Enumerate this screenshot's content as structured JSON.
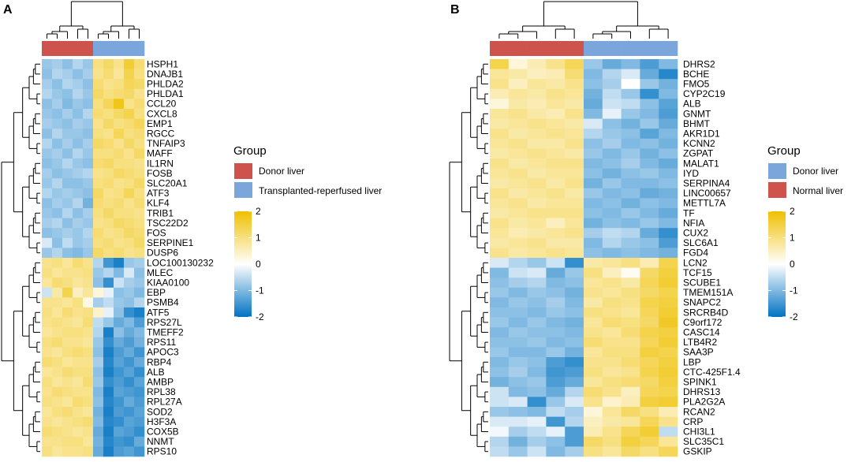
{
  "colors": {
    "donor": "#cd534c",
    "transplanted": "#7aa6dc",
    "normal": "#cd534c",
    "scale_low": "#0073c2",
    "scale_mid": "#ffffff",
    "scale_high": "#efc000"
  },
  "scale": {
    "min": -2,
    "max": 2,
    "ticks": [
      "2",
      "1",
      "0",
      "-1",
      "-2"
    ]
  },
  "chart_data": [
    {
      "type": "heatmap",
      "panel": "A",
      "legend": {
        "title": "Group",
        "entries": [
          "Donor liver",
          "Transplanted-reperfused liver"
        ]
      },
      "columns": [
        "Donor liver",
        "Donor liver",
        "Donor liver",
        "Donor liver",
        "Donor liver",
        "Transplanted-reperfused liver",
        "Transplanted-reperfused liver",
        "Transplanted-reperfused liver",
        "Transplanted-reperfused liver",
        "Transplanted-reperfused liver"
      ],
      "color_range": [
        -2,
        2
      ],
      "genes": [
        "HSPH1",
        "DNAJB1",
        "PHLDA2",
        "PHLDA1",
        "CCL20",
        "CXCL8",
        "EMP1",
        "RGCC",
        "TNFAIP3",
        "MAFF",
        "IL1RN",
        "FOSB",
        "SLC20A1",
        "ATF3",
        "KLF4",
        "TRIB1",
        "TSC22D2",
        "FOS",
        "SERPINE1",
        "DUSP6",
        "LOC100130232",
        "MLEC",
        "KIAA0100",
        "EBP",
        "PSMB4",
        "ATF5",
        "RPS27L",
        "TMEFF2",
        "RPS11",
        "APOC3",
        "RBP4",
        "ALB",
        "AMBP",
        "RPL38",
        "RPL27A",
        "SOD2",
        "H3F3A",
        "COX5B",
        "NNMT",
        "RPS10"
      ],
      "values": [
        [
          -0.8,
          -0.7,
          -0.9,
          -0.6,
          -0.8,
          1.0,
          1.2,
          0.9,
          1.6,
          1.1
        ],
        [
          -0.9,
          -0.6,
          -0.7,
          -0.9,
          -0.7,
          0.9,
          1.1,
          0.8,
          1.4,
          1.0
        ],
        [
          -0.7,
          -0.9,
          -0.6,
          -0.7,
          -0.9,
          1.1,
          0.9,
          1.0,
          1.3,
          1.2
        ],
        [
          -0.6,
          -0.8,
          -0.9,
          -0.6,
          -0.8,
          1.2,
          1.0,
          1.1,
          1.2,
          0.9
        ],
        [
          -0.9,
          -0.7,
          -1.0,
          -0.8,
          -0.9,
          1.0,
          1.3,
          1.8,
          0.9,
          1.1
        ],
        [
          -0.8,
          -0.9,
          -0.7,
          -0.9,
          -0.6,
          1.1,
          1.0,
          1.2,
          1.4,
          1.0
        ],
        [
          -0.7,
          -0.8,
          -0.9,
          -0.7,
          -0.8,
          0.9,
          1.2,
          1.0,
          1.1,
          1.3
        ],
        [
          -0.9,
          -0.6,
          -0.8,
          -0.8,
          -0.9,
          1.0,
          0.9,
          1.3,
          1.0,
          1.1
        ],
        [
          -0.6,
          -0.9,
          -0.7,
          -0.9,
          -0.7,
          1.2,
          1.1,
          0.9,
          1.2,
          1.0
        ],
        [
          -0.8,
          -0.7,
          -0.9,
          -0.6,
          -0.8,
          1.0,
          1.0,
          1.1,
          0.9,
          1.2
        ],
        [
          -0.9,
          -0.8,
          -0.6,
          -0.8,
          -0.9,
          1.1,
          1.2,
          1.0,
          1.0,
          0.9
        ],
        [
          -0.7,
          -0.9,
          -0.8,
          -0.7,
          -0.6,
          0.9,
          1.0,
          1.2,
          1.1,
          1.0
        ],
        [
          -0.8,
          -0.6,
          -0.9,
          -0.9,
          -0.8,
          1.0,
          1.1,
          0.9,
          1.0,
          1.2
        ],
        [
          -0.6,
          -0.8,
          -0.7,
          -0.8,
          -0.9,
          1.2,
          0.9,
          1.0,
          1.3,
          1.0
        ],
        [
          -0.9,
          -0.7,
          -0.8,
          -0.6,
          -1.1,
          1.1,
          1.0,
          1.1,
          0.9,
          1.1
        ],
        [
          -0.8,
          -0.9,
          -0.6,
          -0.9,
          -0.7,
          1.0,
          1.2,
          1.0,
          1.0,
          0.9
        ],
        [
          -0.7,
          -0.6,
          -0.9,
          -0.7,
          -0.8,
          0.9,
          1.0,
          1.2,
          1.1,
          1.0
        ],
        [
          -0.9,
          -0.8,
          -0.7,
          -0.8,
          -0.6,
          1.1,
          0.9,
          1.0,
          1.2,
          1.1
        ],
        [
          -0.3,
          -0.9,
          -0.5,
          -0.8,
          -0.7,
          1.0,
          1.1,
          0.9,
          1.0,
          1.2
        ],
        [
          -0.8,
          -0.6,
          -0.9,
          -1.0,
          -0.8,
          1.2,
          1.0,
          1.1,
          0.9,
          1.0
        ],
        [
          0.9,
          1.0,
          0.8,
          1.1,
          0.9,
          -0.6,
          -1.5,
          -1.8,
          -0.8,
          -0.7
        ],
        [
          1.0,
          0.8,
          0.9,
          0.9,
          1.0,
          -0.8,
          -0.6,
          -1.0,
          -0.3,
          -0.9
        ],
        [
          0.8,
          1.1,
          1.0,
          0.8,
          0.9,
          -0.9,
          -1.6,
          -0.4,
          -0.7,
          -0.8
        ],
        [
          -0.4,
          0.7,
          1.4,
          0.5,
          0.8,
          0.3,
          -0.2,
          -0.9,
          -0.8,
          -1.0
        ],
        [
          0.9,
          0.9,
          0.8,
          1.0,
          0.2,
          -0.7,
          -0.5,
          -0.8,
          -0.9,
          -0.6
        ],
        [
          1.0,
          0.8,
          1.1,
          0.9,
          1.0,
          0.4,
          -0.2,
          -0.9,
          -1.6,
          -1.8
        ],
        [
          0.9,
          1.0,
          0.9,
          0.8,
          1.1,
          -0.5,
          -0.8,
          -1.2,
          -1.0,
          -1.4
        ],
        [
          0.8,
          0.9,
          1.0,
          1.0,
          0.9,
          -0.6,
          -1.8,
          -0.9,
          -1.2,
          -1.0
        ],
        [
          1.0,
          1.1,
          0.9,
          0.9,
          0.8,
          -0.8,
          -1.6,
          -1.2,
          -1.4,
          -1.1
        ],
        [
          0.9,
          0.8,
          1.0,
          1.1,
          1.0,
          -0.9,
          -1.8,
          -1.4,
          -1.2,
          -1.5
        ],
        [
          1.1,
          1.0,
          0.8,
          0.9,
          0.9,
          -0.7,
          -1.7,
          -1.3,
          -1.5,
          -1.2
        ],
        [
          0.8,
          0.9,
          1.1,
          1.0,
          1.0,
          -0.9,
          -1.8,
          -1.5,
          -1.3,
          -1.6
        ],
        [
          1.0,
          0.8,
          0.9,
          0.8,
          1.1,
          -0.8,
          -1.6,
          -1.4,
          -1.6,
          -1.3
        ],
        [
          0.9,
          1.1,
          1.0,
          0.9,
          0.9,
          -1.0,
          -1.8,
          -1.3,
          -1.4,
          -1.5
        ],
        [
          1.0,
          0.9,
          0.8,
          1.1,
          1.0,
          -0.9,
          -1.7,
          -1.5,
          -1.2,
          -1.4
        ],
        [
          0.8,
          1.0,
          1.1,
          0.9,
          0.8,
          -1.1,
          -1.8,
          -1.4,
          -1.5,
          -1.3
        ],
        [
          0.9,
          0.8,
          0.9,
          1.0,
          1.1,
          -1.0,
          -1.7,
          -1.6,
          -1.3,
          -1.4
        ],
        [
          1.1,
          1.0,
          0.9,
          0.8,
          0.9,
          -1.2,
          -1.8,
          -1.3,
          -1.4,
          -1.6
        ],
        [
          0.9,
          0.9,
          1.0,
          1.0,
          0.8,
          -1.1,
          -1.7,
          -1.5,
          -1.6,
          -1.2
        ],
        [
          1.0,
          0.8,
          0.9,
          0.9,
          1.0,
          -1.2,
          -1.8,
          -1.4,
          -1.3,
          -1.5
        ]
      ]
    },
    {
      "type": "heatmap",
      "panel": "B",
      "legend": {
        "title": "Group",
        "entries": [
          "Donor liver",
          "Normal liver"
        ]
      },
      "columns": [
        "Normal liver",
        "Normal liver",
        "Normal liver",
        "Normal liver",
        "Normal liver",
        "Donor liver",
        "Donor liver",
        "Donor liver",
        "Donor liver",
        "Donor liver"
      ],
      "color_range": [
        -2,
        2
      ],
      "genes": [
        "DHRS2",
        "BCHE",
        "FMO5",
        "CYP2C19",
        "ALB",
        "GNMT",
        "BHMT",
        "AKR1D1",
        "KCNN2",
        "ZGPAT",
        "MALAT1",
        "IYD",
        "SERPINA4",
        "LINC00657",
        "METTL7A",
        "TF",
        "NFIA",
        "CUX2",
        "SLC6A1",
        "FGD4",
        "LCN2",
        "TCF15",
        "SCUBE1",
        "TMEM151A",
        "SNAPC2",
        "SRCRB4D",
        "C9orf172",
        "CASC14",
        "LTB4R2",
        "SAA3P",
        "LBP",
        "CTC-425F1.4",
        "SPINK1",
        "DHRS13",
        "PLA2G2A",
        "RCAN2",
        "CRP",
        "CHI3L1",
        "SLC35C1",
        "GSKIP"
      ],
      "values": [
        [
          1.4,
          0.3,
          0.6,
          0.9,
          1.3,
          -0.8,
          -1.2,
          -1.0,
          -1.4,
          -1.0
        ],
        [
          0.8,
          0.7,
          0.5,
          0.6,
          1.1,
          -1.0,
          -0.6,
          -0.3,
          -1.2,
          -1.7
        ],
        [
          0.9,
          0.5,
          0.8,
          0.7,
          0.9,
          -0.9,
          -0.7,
          0.0,
          -0.8,
          -1.1
        ],
        [
          0.6,
          0.8,
          0.7,
          0.9,
          0.8,
          -1.1,
          -0.5,
          -0.8,
          -1.6,
          -1.0
        ],
        [
          0.3,
          0.7,
          0.6,
          0.8,
          0.7,
          -1.2,
          -0.4,
          -0.5,
          -0.9,
          -1.3
        ],
        [
          0.8,
          0.9,
          0.7,
          0.6,
          0.9,
          -1.0,
          -0.2,
          -0.8,
          -1.0,
          -1.4
        ],
        [
          0.7,
          0.8,
          0.9,
          0.8,
          0.7,
          -0.3,
          -0.9,
          -1.1,
          -0.8,
          -1.2
        ],
        [
          0.9,
          0.7,
          0.8,
          0.9,
          0.8,
          -0.6,
          -0.8,
          -0.9,
          -1.3,
          -1.0
        ],
        [
          0.8,
          0.9,
          0.7,
          0.7,
          0.9,
          -0.9,
          -0.7,
          -1.0,
          -0.9,
          -1.1
        ],
        [
          0.7,
          0.8,
          0.9,
          0.8,
          0.7,
          -0.8,
          -1.0,
          -0.8,
          -1.1,
          -0.9
        ],
        [
          0.9,
          0.7,
          0.8,
          0.9,
          0.9,
          -1.0,
          -0.9,
          -0.7,
          -1.0,
          -1.2
        ],
        [
          0.8,
          0.9,
          0.7,
          0.8,
          0.8,
          -0.9,
          -1.1,
          -0.9,
          -0.8,
          -1.0
        ],
        [
          0.7,
          0.8,
          0.9,
          0.7,
          0.9,
          -1.1,
          -0.8,
          -1.0,
          -1.0,
          -0.9
        ],
        [
          0.9,
          0.7,
          0.8,
          0.9,
          0.7,
          -0.8,
          -1.0,
          -0.9,
          -1.2,
          -1.1
        ],
        [
          0.8,
          0.9,
          0.7,
          0.8,
          0.8,
          -1.0,
          -0.9,
          -1.1,
          -0.9,
          -1.0
        ],
        [
          0.7,
          0.8,
          0.9,
          0.9,
          0.9,
          -0.9,
          -1.0,
          -0.8,
          -1.0,
          -1.2
        ],
        [
          0.9,
          0.7,
          0.8,
          0.5,
          0.8,
          -1.1,
          -0.9,
          -1.0,
          -0.8,
          -1.0
        ],
        [
          0.8,
          0.6,
          0.7,
          0.8,
          0.9,
          -0.7,
          -0.5,
          -0.6,
          -1.2,
          -1.6
        ],
        [
          0.7,
          0.8,
          0.9,
          0.7,
          0.7,
          -1.0,
          -0.6,
          -0.8,
          -0.9,
          -1.4
        ],
        [
          0.9,
          0.7,
          0.8,
          0.9,
          0.8,
          -0.9,
          -1.0,
          -0.9,
          -1.0,
          -1.1
        ],
        [
          -0.3,
          -0.6,
          -0.8,
          -0.4,
          -1.6,
          0.7,
          0.8,
          1.0,
          0.6,
          1.4
        ],
        [
          -1.0,
          -0.4,
          -0.3,
          -1.2,
          -0.8,
          1.0,
          0.5,
          0.1,
          1.2,
          1.5
        ],
        [
          -0.9,
          -0.7,
          -0.6,
          -1.0,
          -0.9,
          0.8,
          0.9,
          0.7,
          1.3,
          1.6
        ],
        [
          -0.8,
          -1.0,
          -0.8,
          -0.9,
          -1.1,
          0.9,
          0.8,
          1.0,
          1.2,
          1.4
        ],
        [
          -1.0,
          -0.8,
          -0.9,
          -0.7,
          -1.0,
          0.7,
          1.0,
          0.9,
          1.4,
          1.5
        ],
        [
          -0.9,
          -0.9,
          -1.0,
          -0.8,
          -0.9,
          1.0,
          0.9,
          0.8,
          1.3,
          1.6
        ],
        [
          -0.8,
          -1.0,
          -0.8,
          -1.0,
          -1.1,
          0.8,
          1.1,
          1.0,
          1.2,
          1.7
        ],
        [
          -1.0,
          -0.8,
          -0.9,
          -0.9,
          -1.0,
          0.9,
          0.8,
          1.1,
          1.4,
          1.5
        ],
        [
          -0.9,
          -0.9,
          -0.8,
          -1.0,
          -0.9,
          1.1,
          0.9,
          0.9,
          1.3,
          1.6
        ],
        [
          -0.8,
          -1.0,
          -1.0,
          -0.8,
          -1.1,
          0.8,
          1.0,
          1.0,
          1.5,
          1.4
        ],
        [
          -1.0,
          -0.8,
          -0.9,
          -1.4,
          -1.6,
          0.9,
          0.9,
          1.1,
          1.3,
          1.5
        ],
        [
          -0.9,
          -0.7,
          -1.0,
          -1.5,
          -1.4,
          1.0,
          0.8,
          0.9,
          1.4,
          1.6
        ],
        [
          -1.1,
          -0.9,
          -0.8,
          -1.4,
          -1.2,
          0.8,
          1.0,
          1.1,
          1.2,
          1.5
        ],
        [
          -0.4,
          -1.0,
          -0.9,
          -1.2,
          -0.6,
          1.1,
          0.9,
          0.5,
          1.3,
          1.4
        ],
        [
          -0.4,
          -0.3,
          -1.6,
          -0.8,
          -0.3,
          0.9,
          0.4,
          0.6,
          1.5,
          1.6
        ],
        [
          -0.8,
          -0.9,
          -1.0,
          -0.5,
          -0.7,
          0.3,
          0.8,
          1.2,
          1.0,
          0.6
        ],
        [
          -0.3,
          -0.3,
          -0.2,
          -1.5,
          -0.6,
          0.5,
          0.7,
          0.8,
          1.3,
          0.9
        ],
        [
          -0.1,
          -0.7,
          -0.5,
          -0.2,
          -1.4,
          0.6,
          0.9,
          1.3,
          1.6,
          -0.5
        ],
        [
          -0.6,
          -1.1,
          -0.7,
          -0.9,
          -1.4,
          1.2,
          1.0,
          1.5,
          1.3,
          0.8
        ],
        [
          -0.5,
          -0.8,
          -0.4,
          -1.0,
          -0.7,
          1.0,
          0.8,
          1.2,
          1.0,
          1.3
        ]
      ]
    }
  ]
}
